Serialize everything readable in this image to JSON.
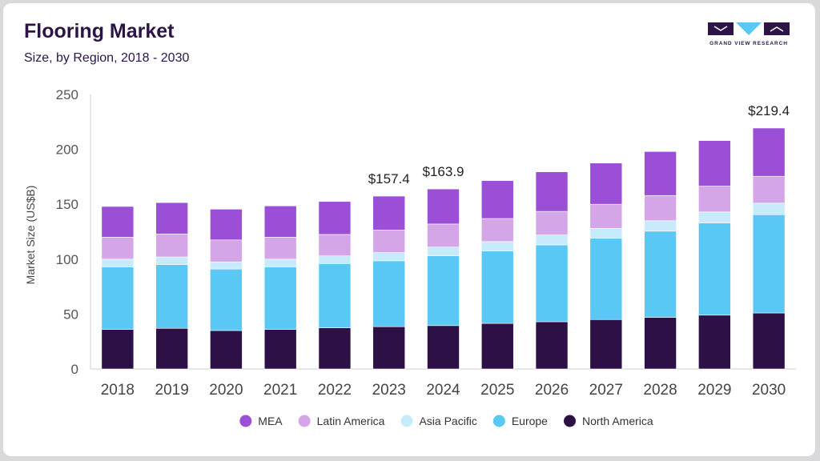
{
  "header": {
    "title": "Flooring Market",
    "subtitle": "Size, by Region, 2018 - 2030"
  },
  "logo": {
    "text": "GRAND VIEW RESEARCH",
    "color": "#2c1447",
    "accent": "#5ac8f5"
  },
  "chart_data": {
    "type": "bar",
    "stacked": true,
    "ylabel": "Market Size (US$B)",
    "xlabel": "",
    "ylim": [
      0,
      250
    ],
    "yticks": [
      0,
      50,
      100,
      150,
      200,
      250
    ],
    "grid": false,
    "legend_position": "bottom",
    "categories": [
      "2018",
      "2019",
      "2020",
      "2021",
      "2022",
      "2023",
      "2024",
      "2025",
      "2026",
      "2027",
      "2028",
      "2029",
      "2030"
    ],
    "series": [
      {
        "name": "North America",
        "color": "#2d1046",
        "values": [
          36,
          37,
          35,
          36,
          37.5,
          38.5,
          39.5,
          41.5,
          43,
          45,
          47,
          49,
          51
        ]
      },
      {
        "name": "Europe",
        "color": "#5ac8f5",
        "values": [
          57,
          58,
          56,
          57,
          58.5,
          60,
          63.5,
          66,
          70,
          74,
          78.5,
          84,
          89.5
        ]
      },
      {
        "name": "Asia Pacific",
        "color": "#c7ebfb",
        "values": [
          7,
          7,
          6.5,
          7,
          7,
          7.5,
          8,
          8.5,
          9,
          9,
          9.5,
          10,
          10.5
        ]
      },
      {
        "name": "Latin America",
        "color": "#d4a6e8",
        "values": [
          20,
          21,
          20,
          20,
          19.5,
          20.5,
          21,
          21,
          21.5,
          22,
          23,
          23.5,
          24.5
        ]
      },
      {
        "name": "MEA",
        "color": "#9b4fd6",
        "values": [
          28,
          28.5,
          28,
          28.5,
          30,
          30.9,
          31.9,
          34.5,
          36,
          37.5,
          40,
          41.5,
          43.9
        ]
      }
    ],
    "annotations": [
      {
        "category": "2023",
        "label": "$157.4",
        "value": 157.4
      },
      {
        "category": "2024",
        "label": "$163.9",
        "value": 163.9
      },
      {
        "category": "2030",
        "label": "$219.4",
        "value": 219.4
      }
    ],
    "legend_order": [
      "MEA",
      "Latin America",
      "Asia Pacific",
      "Europe",
      "North America"
    ]
  }
}
